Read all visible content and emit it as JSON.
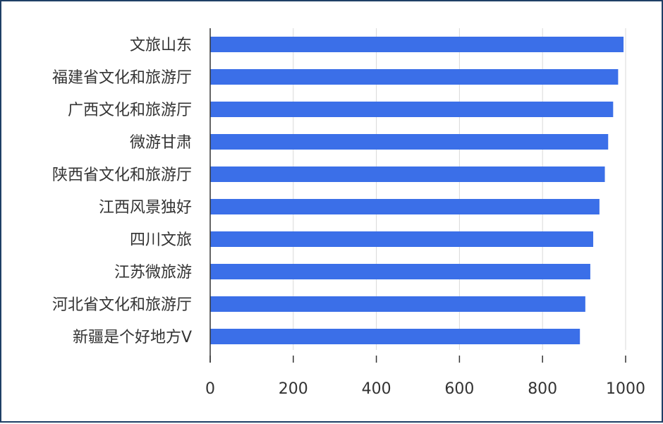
{
  "chart_data": {
    "type": "bar",
    "orientation": "horizontal",
    "categories": [
      "文旅山东",
      "福建省文化和旅游厅",
      "广西文化和旅游厅",
      "微游甘肃",
      "陕西省文化和旅游厅",
      "江西风景独好",
      "四川文旅",
      "江苏微旅游",
      "河北省文化和旅游厅",
      "新疆是个好地方V"
    ],
    "values": [
      995,
      982,
      970,
      958,
      950,
      937,
      922,
      915,
      903,
      890
    ],
    "xlim": [
      0,
      1000
    ],
    "xticks": [
      0,
      200,
      400,
      600,
      800,
      1000
    ],
    "tick_labels": [
      "0",
      "200",
      "400",
      "600",
      "800",
      "1000"
    ],
    "title": "",
    "xlabel": "",
    "ylabel": "",
    "grid": "vertical",
    "legend": "none",
    "colors": {
      "bar": "#3b6fe8",
      "grid": "#d9d9d9",
      "axis": "#333333",
      "border": "#1f3f66"
    }
  }
}
